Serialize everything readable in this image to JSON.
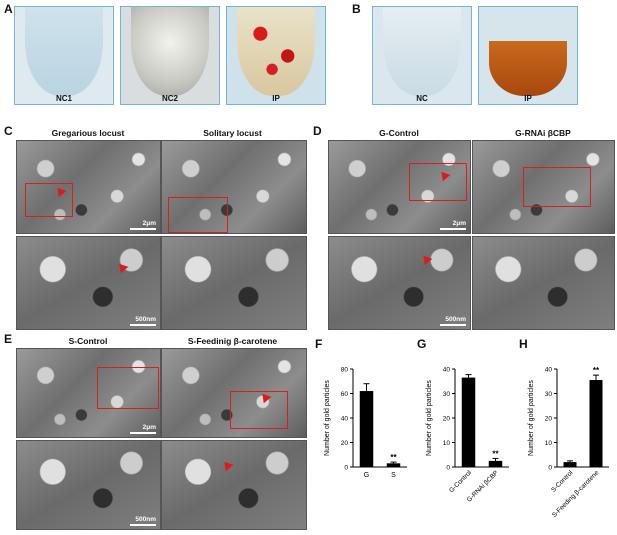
{
  "panel_labels": {
    "A": "A",
    "B": "B",
    "C": "C",
    "D": "D",
    "E": "E",
    "F": "F",
    "G": "G",
    "H": "H"
  },
  "panel_A": {
    "tubes": [
      "NC1",
      "NC2",
      "IP"
    ]
  },
  "panel_B": {
    "tubes": [
      "NC",
      "IP"
    ]
  },
  "panel_C": {
    "titles": [
      "Gregarious locust",
      "Solitary locust"
    ],
    "scale_top": "2μm",
    "scale_bottom": "500nm"
  },
  "panel_D": {
    "titles": [
      "G-Control",
      "G-RNAi βCBP"
    ],
    "scale_top": "2μm",
    "scale_bottom": "500nm"
  },
  "panel_E": {
    "titles": [
      "S-Control",
      "S-Feedinig β-carotene"
    ],
    "scale_top": "2μm",
    "scale_bottom": "500nm"
  },
  "chart_data": [
    {
      "panel": "F",
      "type": "bar",
      "ylabel": "Number of gold particles",
      "categories": [
        "G",
        "S"
      ],
      "values": [
        62,
        3
      ],
      "errors": [
        6,
        1
      ],
      "ylim": [
        0,
        80
      ],
      "yticks": [
        0,
        20,
        40,
        60,
        80
      ],
      "annotations": [
        "",
        "**"
      ]
    },
    {
      "panel": "G",
      "type": "bar",
      "ylabel": "Number of gold particles",
      "categories": [
        "G-Control",
        "G-RNAi βCBP"
      ],
      "values": [
        36.5,
        2.5
      ],
      "errors": [
        1.2,
        1.0
      ],
      "ylim": [
        0,
        40
      ],
      "yticks": [
        0,
        10,
        20,
        30,
        40
      ],
      "annotations": [
        "",
        "**"
      ]
    },
    {
      "panel": "H",
      "type": "bar",
      "ylabel": "Number of gold particles",
      "categories": [
        "S-Control",
        "S-Feeding β-carotene"
      ],
      "values": [
        2,
        35.5
      ],
      "errors": [
        0.5,
        2.0
      ],
      "ylim": [
        0,
        40
      ],
      "yticks": [
        0,
        10,
        20,
        30,
        40
      ],
      "annotations": [
        "",
        "**"
      ]
    }
  ]
}
